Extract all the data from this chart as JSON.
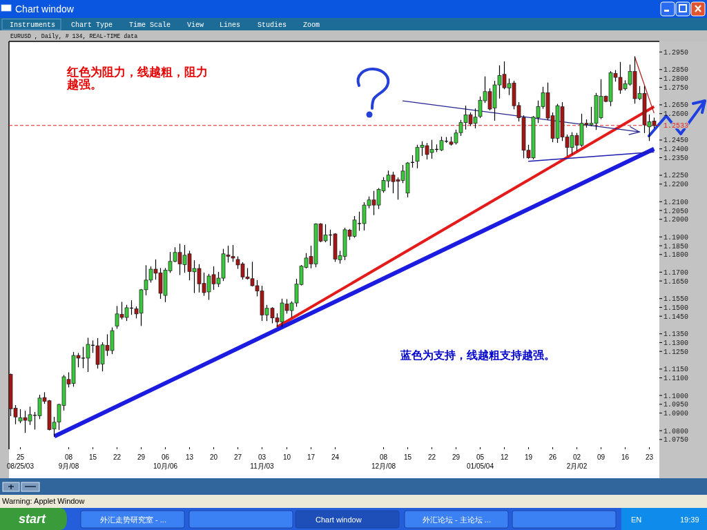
{
  "chart_data": {
    "type": "candlestick",
    "title": "EURUSD , Daily, # 134, REAL-TIME data",
    "categories": [
      null,
      null,
      "25\n08/25/03",
      null,
      null,
      null,
      null,
      null,
      null,
      null,
      null,
      null,
      "08\n9月/08",
      null,
      null,
      null,
      null,
      "15",
      null,
      null,
      null,
      null,
      "22",
      null,
      null,
      null,
      null,
      "29",
      null,
      null,
      null,
      null,
      "06\n10月/06",
      null,
      null,
      null,
      null,
      "13",
      null,
      null,
      null,
      null,
      "20",
      null,
      null,
      null,
      null,
      "27",
      null,
      null,
      null,
      null,
      "03\n11月/03",
      null,
      null,
      null,
      null,
      "10",
      null,
      null,
      null,
      null,
      "17",
      null,
      null,
      null,
      null,
      "24",
      null,
      null,
      null,
      null,
      null,
      null,
      null,
      null,
      null,
      "08\n12月/08",
      null,
      null,
      null,
      null,
      "15",
      null,
      null,
      null,
      null,
      "22",
      null,
      null,
      null,
      null,
      "29",
      null,
      null,
      null,
      null,
      "05\n01/05/04",
      null,
      null,
      null,
      null,
      "12",
      null,
      null,
      null,
      null,
      "19",
      null,
      null,
      null,
      null,
      "26",
      null,
      null,
      null,
      null,
      "02\n2月/02",
      null,
      null,
      null,
      null,
      "09",
      null,
      null,
      null,
      null,
      "16",
      null,
      null,
      null,
      null,
      "23",
      null
    ],
    "ohlc": [
      [
        1.112,
        1.1122,
        1.0885,
        1.0924
      ],
      [
        1.0928,
        1.0943,
        1.0839,
        1.0878
      ],
      [
        1.0855,
        1.092,
        1.0845,
        1.0874
      ],
      [
        1.0874,
        1.0911,
        1.079,
        1.0859
      ],
      [
        1.0855,
        1.0934,
        1.0835,
        1.0891
      ],
      [
        1.0887,
        1.0904,
        1.0809,
        1.0887
      ],
      [
        1.0885,
        1.1002,
        1.0868,
        1.0985
      ],
      [
        1.0988,
        1.1016,
        1.0955,
        1.0967
      ],
      [
        1.097,
        1.0972,
        1.0804,
        1.0806
      ],
      [
        1.081,
        1.0876,
        1.0767,
        1.0848
      ],
      [
        1.0849,
        1.095,
        1.0806,
        1.0949
      ],
      [
        1.0943,
        1.1114,
        1.0917,
        1.1106
      ],
      [
        1.1091,
        1.1129,
        1.1048,
        1.1065
      ],
      [
        1.1068,
        1.1244,
        1.1052,
        1.1227
      ],
      [
        1.1227,
        1.1239,
        1.1162,
        1.1212
      ],
      [
        1.1212,
        1.1274,
        1.1157,
        1.1212
      ],
      [
        1.1212,
        1.1325,
        1.1136,
        1.129
      ],
      [
        1.1285,
        1.131,
        1.1244,
        1.1285
      ],
      [
        1.1282,
        1.1323,
        1.1155,
        1.1176
      ],
      [
        1.1179,
        1.13,
        1.1139,
        1.1287
      ],
      [
        1.1285,
        1.1345,
        1.1227,
        1.1255
      ],
      [
        1.1255,
        1.1384,
        1.1237,
        1.1368
      ],
      [
        1.1394,
        1.1506,
        1.1381,
        1.1463
      ],
      [
        1.146,
        1.1529,
        1.1434,
        1.1443
      ],
      [
        1.1443,
        1.1512,
        1.1425,
        1.1498
      ],
      [
        1.1496,
        1.1538,
        1.146,
        1.1496
      ],
      [
        1.1492,
        1.1503,
        1.144,
        1.1463
      ],
      [
        1.1467,
        1.1602,
        1.1397,
        1.16
      ],
      [
        1.16,
        1.1737,
        1.1571,
        1.1655
      ],
      [
        1.1655,
        1.173,
        1.1643,
        1.1717
      ],
      [
        1.1717,
        1.177,
        1.166,
        1.1694
      ],
      [
        1.1695,
        1.1721,
        1.1551,
        1.158
      ],
      [
        1.1568,
        1.1721,
        1.1532,
        1.1711
      ],
      [
        1.1708,
        1.1812,
        1.1698,
        1.1761
      ],
      [
        1.1761,
        1.1839,
        1.1759,
        1.1812
      ],
      [
        1.1812,
        1.1859,
        1.1686,
        1.1747
      ],
      [
        1.1743,
        1.1852,
        1.1699,
        1.1796
      ],
      [
        1.1804,
        1.1819,
        1.1656,
        1.1704
      ],
      [
        1.1702,
        1.1765,
        1.1584,
        1.1721
      ],
      [
        1.1721,
        1.1743,
        1.1587,
        1.1634
      ],
      [
        1.1636,
        1.1695,
        1.1568,
        1.1584
      ],
      [
        1.1588,
        1.1688,
        1.1545,
        1.1678
      ],
      [
        1.1686,
        1.173,
        1.1602,
        1.1634
      ],
      [
        1.1634,
        1.1699,
        1.1618,
        1.1666
      ],
      [
        1.1666,
        1.183,
        1.1652,
        1.1804
      ],
      [
        1.1798,
        1.1848,
        1.1757,
        1.179
      ],
      [
        1.1789,
        1.1852,
        1.1761,
        1.178
      ],
      [
        1.1772,
        1.1787,
        1.1721,
        1.1741
      ],
      [
        1.1747,
        1.1754,
        1.166,
        1.1673
      ],
      [
        1.1673,
        1.1721,
        1.166,
        1.1663
      ],
      [
        1.1663,
        1.1757,
        1.1621,
        1.1623
      ],
      [
        1.1623,
        1.1653,
        1.1565,
        1.1593
      ],
      [
        1.1593,
        1.1621,
        1.1425,
        1.1457
      ],
      [
        1.1457,
        1.1512,
        1.1425,
        1.1495
      ],
      [
        1.1495,
        1.1499,
        1.1412,
        1.144
      ],
      [
        1.144,
        1.1464,
        1.1392,
        1.1417
      ],
      [
        1.1417,
        1.1547,
        1.1392,
        1.1525
      ],
      [
        1.1519,
        1.1545,
        1.1467,
        1.1482
      ],
      [
        1.1482,
        1.1532,
        1.1444,
        1.1525
      ],
      [
        1.1525,
        1.166,
        1.1506,
        1.1632
      ],
      [
        1.163,
        1.1738,
        1.1627,
        1.1734
      ],
      [
        1.1727,
        1.1806,
        1.1724,
        1.178
      ],
      [
        1.1789,
        1.1848,
        1.1724,
        1.1747
      ],
      [
        1.1747,
        1.1975,
        1.173,
        1.1974
      ],
      [
        1.1974,
        1.1976,
        1.1872,
        1.1876
      ],
      [
        1.1878,
        1.197,
        1.1872,
        1.1911
      ],
      [
        1.1911,
        1.1939,
        1.1852,
        1.1911
      ],
      [
        1.1917,
        1.1919,
        1.1761,
        1.1774
      ],
      [
        1.177,
        1.1819,
        1.1751,
        1.1793
      ],
      [
        1.179,
        1.195,
        1.177,
        1.1941
      ],
      [
        1.1939,
        1.1943,
        1.1885,
        1.1904
      ],
      [
        1.1904,
        1.2016,
        1.1898,
        1.1996
      ],
      [
        1.1976,
        1.2041,
        1.1937,
        1.1976
      ],
      [
        1.1976,
        1.2094,
        1.1939,
        1.2081
      ],
      [
        1.2078,
        1.2127,
        1.2065,
        1.211
      ],
      [
        1.211,
        1.2159,
        1.2026,
        1.2081
      ],
      [
        1.2081,
        1.2175,
        1.2061,
        1.217
      ],
      [
        1.2162,
        1.2237,
        1.2153,
        1.2221
      ],
      [
        1.2218,
        1.2274,
        1.2183,
        1.2251
      ],
      [
        1.2251,
        1.2268,
        1.215,
        1.2214
      ],
      [
        1.2225,
        1.2235,
        1.2114,
        1.2216
      ],
      [
        1.2221,
        1.2306,
        1.2208,
        1.2274
      ],
      [
        1.2149,
        1.2323,
        1.2127,
        1.232
      ],
      [
        1.2323,
        1.2362,
        1.2296,
        1.2323
      ],
      [
        1.2329,
        1.2421,
        1.2292,
        1.2408
      ],
      [
        1.2408,
        1.244,
        1.2362,
        1.2421
      ],
      [
        1.2418,
        1.2431,
        1.2342,
        1.2368
      ],
      [
        1.2379,
        1.2449,
        1.2346,
        1.2397
      ],
      [
        1.2397,
        1.2423,
        1.2384,
        1.2397
      ],
      [
        1.2394,
        1.2467,
        1.239,
        1.2447
      ],
      [
        1.2443,
        1.2465,
        1.2436,
        1.2443
      ],
      [
        1.2439,
        1.2467,
        1.2421,
        1.2426
      ],
      [
        1.2434,
        1.2507,
        1.2427,
        1.249
      ],
      [
        1.2492,
        1.2562,
        1.2476,
        1.2549
      ],
      [
        1.2549,
        1.2643,
        1.2512,
        1.2593
      ],
      [
        1.2594,
        1.2604,
        1.2532,
        1.2542
      ],
      [
        1.2545,
        1.2627,
        1.2519,
        1.258
      ],
      [
        1.2584,
        1.2695,
        1.2577,
        1.2676
      ],
      [
        1.2673,
        1.2809,
        1.2663,
        1.2725
      ],
      [
        1.2725,
        1.2741,
        1.2621,
        1.2626
      ],
      [
        1.2632,
        1.2784,
        1.2562,
        1.2763
      ],
      [
        1.2763,
        1.2872,
        1.2688,
        1.2816
      ],
      [
        1.2823,
        1.2894,
        1.2741,
        1.2747
      ],
      [
        1.2745,
        1.2797,
        1.2708,
        1.2771
      ],
      [
        1.2774,
        1.2784,
        1.2627,
        1.2645
      ],
      [
        1.2646,
        1.2663,
        1.2558,
        1.2577
      ],
      [
        1.2577,
        1.2588,
        1.2349,
        1.2392
      ],
      [
        1.2392,
        1.2421,
        1.2345,
        1.2349
      ],
      [
        1.2349,
        1.2584,
        1.2342,
        1.258
      ],
      [
        1.2577,
        1.2672,
        1.2549,
        1.264
      ],
      [
        1.264,
        1.275,
        1.263,
        1.2719
      ],
      [
        1.2719,
        1.2774,
        1.2565,
        1.2575
      ],
      [
        1.2588,
        1.2604,
        1.244,
        1.246
      ],
      [
        1.246,
        1.2653,
        1.2436,
        1.2645
      ],
      [
        1.2639,
        1.2663,
        1.2447,
        1.2467
      ],
      [
        1.2467,
        1.2479,
        1.2362,
        1.2408
      ],
      [
        1.2408,
        1.2492,
        1.2371,
        1.2476
      ],
      [
        1.2476,
        1.2488,
        1.239,
        1.2421
      ],
      [
        1.2421,
        1.2597,
        1.2414,
        1.2545
      ],
      [
        1.2545,
        1.2565,
        1.2523,
        1.2538
      ],
      [
        1.2536,
        1.2636,
        1.2532,
        1.2545
      ],
      [
        1.2545,
        1.2715,
        1.251,
        1.2702
      ],
      [
        1.2577,
        1.2793,
        1.2571,
        1.2698
      ],
      [
        1.2698,
        1.27,
        1.2667,
        1.2669
      ],
      [
        1.2669,
        1.2839,
        1.2645,
        1.2832
      ],
      [
        1.2828,
        1.2845,
        1.2784,
        1.2806
      ],
      [
        1.2806,
        1.2891,
        1.2715,
        1.2734
      ],
      [
        1.2741,
        1.2787,
        1.2734,
        1.277
      ],
      [
        1.2767,
        1.2876,
        1.2761,
        1.2839
      ],
      [
        1.2839,
        1.2923,
        1.2659,
        1.2685
      ],
      [
        1.2685,
        1.2754,
        1.2679,
        1.2715
      ],
      [
        1.2715,
        1.2754,
        1.2492,
        1.2536
      ],
      [
        1.2525,
        1.2593,
        1.2447,
        1.2554
      ],
      [
        1.2558,
        1.2575,
        1.2519,
        1.2532
      ]
    ],
    "colors": [
      "#a31616",
      "#a31616",
      "#3cc83c",
      "#a31616",
      "#3cc83c",
      "#000000",
      "#3cc83c",
      "#a31616",
      "#a31616",
      "#3cc83c",
      "#3cc83c",
      "#3cc83c",
      "#a31616",
      "#3cc83c",
      "#a31616",
      "#000000",
      "#3cc83c",
      "#000000",
      "#a31616",
      "#3cc83c",
      "#a31616",
      "#3cc83c",
      "#3cc83c",
      "#a31616",
      "#3cc83c",
      "#000000",
      "#a31616",
      "#3cc83c",
      "#3cc83c",
      "#3cc83c",
      "#a31616",
      "#a31616",
      "#3cc83c",
      "#3cc83c",
      "#3cc83c",
      "#a31616",
      "#3cc83c",
      "#a31616",
      "#3cc83c",
      "#a31616",
      "#a31616",
      "#3cc83c",
      "#a31616",
      "#3cc83c",
      "#3cc83c",
      "#a31616",
      "#a31616",
      "#a31616",
      "#a31616",
      "#a31616",
      "#a31616",
      "#a31616",
      "#a31616",
      "#3cc83c",
      "#a31616",
      "#a31616",
      "#3cc83c",
      "#a31616",
      "#3cc83c",
      "#3cc83c",
      "#3cc83c",
      "#3cc83c",
      "#a31616",
      "#3cc83c",
      "#a31616",
      "#3cc83c",
      "#000000",
      "#a31616",
      "#3cc83c",
      "#3cc83c",
      "#a31616",
      "#3cc83c",
      "#000000",
      "#3cc83c",
      "#3cc83c",
      "#a31616",
      "#3cc83c",
      "#3cc83c",
      "#3cc83c",
      "#a31616",
      "#a31616",
      "#3cc83c",
      "#3cc83c",
      "#000000",
      "#3cc83c",
      "#3cc83c",
      "#a31616",
      "#3cc83c",
      "#000000",
      "#3cc83c",
      "#000000",
      "#a31616",
      "#3cc83c",
      "#3cc83c",
      "#3cc83c",
      "#a31616",
      "#3cc83c",
      "#3cc83c",
      "#3cc83c",
      "#a31616",
      "#3cc83c",
      "#3cc83c",
      "#a31616",
      "#3cc83c",
      "#a31616",
      "#a31616",
      "#a31616",
      "#a31616",
      "#3cc83c",
      "#3cc83c",
      "#3cc83c",
      "#a31616",
      "#a31616",
      "#3cc83c",
      "#a31616",
      "#a31616",
      "#3cc83c",
      "#a31616",
      "#3cc83c",
      "#a31616",
      "#3cc83c",
      "#3cc83c",
      "#3cc83c",
      "#a31616",
      "#3cc83c",
      "#a31616",
      "#a31616",
      "#3cc83c",
      "#3cc83c",
      "#a31616",
      "#3cc83c",
      "#a31616",
      "#3cc83c",
      "#a31616"
    ],
    "ylim": [
      1.053,
      1.301
    ],
    "yticks": [
      {
        "value": 1.295,
        "label": "1.2950"
      },
      {
        "value": 1.285,
        "label": "1.2850"
      },
      {
        "value": 1.28,
        "label": "1.2800"
      },
      {
        "value": 1.275,
        "label": "1.2750"
      },
      {
        "value": 1.265,
        "label": "1.2650"
      },
      {
        "value": 1.26,
        "label": "1.2600"
      },
      {
        "value": 1.245,
        "label": "1.2450"
      },
      {
        "value": 1.24,
        "label": "1.2400"
      },
      {
        "value": 1.235,
        "label": "1.2350"
      },
      {
        "value": 1.225,
        "label": "1.2250"
      },
      {
        "value": 1.22,
        "label": "1.2200"
      },
      {
        "value": 1.21,
        "label": "1.2100"
      },
      {
        "value": 1.205,
        "label": "1.2050"
      },
      {
        "value": 1.2,
        "label": "1.2000"
      },
      {
        "value": 1.19,
        "label": "1.1900"
      },
      {
        "value": 1.185,
        "label": "1.1850"
      },
      {
        "value": 1.18,
        "label": "1.1800"
      },
      {
        "value": 1.17,
        "label": "1.1700"
      },
      {
        "value": 1.165,
        "label": "1.1650"
      },
      {
        "value": 1.155,
        "label": "1.1550"
      },
      {
        "value": 1.15,
        "label": "1.1500"
      },
      {
        "value": 1.145,
        "label": "1.1450"
      },
      {
        "value": 1.135,
        "label": "1.1350"
      },
      {
        "value": 1.13,
        "label": "1.1300"
      },
      {
        "value": 1.125,
        "label": "1.1250"
      },
      {
        "value": 1.115,
        "label": "1.1150"
      },
      {
        "value": 1.11,
        "label": "1.1100"
      },
      {
        "value": 1.1,
        "label": "1.1000"
      },
      {
        "value": 1.095,
        "label": "1.0950"
      },
      {
        "value": 1.09,
        "label": "1.0900"
      },
      {
        "value": 1.08,
        "label": "1.0800"
      },
      {
        "value": 1.075,
        "label": "1.0750"
      }
    ],
    "series": [
      {
        "type": "line",
        "color": "#e41b1b",
        "values": [
          null,
          null,
          null,
          null,
          null,
          null,
          null,
          null,
          null,
          null,
          null,
          null,
          null,
          null,
          null,
          null,
          null,
          null,
          null,
          null,
          null,
          null,
          null,
          null,
          null,
          null,
          null,
          null,
          null,
          null,
          null,
          null,
          null,
          null,
          null,
          null,
          null,
          null,
          null,
          null,
          null,
          null,
          null,
          null,
          null,
          null,
          null,
          null,
          null,
          null,
          null,
          null,
          null,
          null,
          null,
          1.1388,
          null,
          null,
          null,
          null,
          null,
          null,
          null,
          null,
          null,
          null,
          null,
          null,
          null,
          null,
          null,
          null,
          null,
          null,
          null,
          null,
          null,
          null,
          null,
          null,
          null,
          null,
          null,
          null,
          null,
          null,
          null,
          null,
          null,
          null,
          null,
          null,
          null,
          null,
          null,
          null,
          null,
          null,
          null,
          null,
          null,
          null,
          null,
          null,
          null,
          null,
          null,
          null,
          null,
          null,
          null,
          null,
          null,
          null,
          null,
          null,
          null,
          null,
          null,
          null,
          null,
          null,
          null,
          null,
          null,
          null,
          null,
          null,
          null,
          null,
          null,
          null,
          null,
          1.264
        ]
      },
      {
        "type": "line",
        "color": "#1c1ce0",
        "values": [
          null,
          null,
          null,
          null,
          null,
          null,
          null,
          null,
          null,
          1.0768,
          null,
          null,
          null,
          null,
          null,
          null,
          null,
          null,
          null,
          null,
          null,
          null,
          null,
          null,
          null,
          null,
          null,
          null,
          null,
          null,
          null,
          null,
          null,
          null,
          null,
          null,
          null,
          null,
          null,
          null,
          null,
          null,
          null,
          null,
          null,
          null,
          null,
          null,
          null,
          null,
          null,
          null,
          null,
          null,
          null,
          null,
          null,
          null,
          null,
          null,
          null,
          null,
          null,
          null,
          null,
          null,
          null,
          null,
          null,
          null,
          null,
          null,
          null,
          null,
          null,
          null,
          null,
          null,
          null,
          null,
          null,
          null,
          null,
          null,
          null,
          null,
          null,
          null,
          null,
          null,
          null,
          null,
          null,
          null,
          null,
          null,
          null,
          null,
          null,
          null,
          null,
          null,
          null,
          null,
          null,
          null,
          null,
          null,
          null,
          null,
          null,
          null,
          null,
          null,
          null,
          null,
          null,
          null,
          null,
          null,
          null,
          null,
          null,
          null,
          null,
          null,
          null,
          null,
          null,
          null,
          null,
          null,
          null,
          1.24
        ]
      },
      {
        "type": "line",
        "color": "#24248f",
        "values": [
          null,
          null,
          null,
          null,
          null,
          null,
          null,
          null,
          null,
          null,
          null,
          null,
          null,
          null,
          null,
          null,
          null,
          null,
          null,
          null,
          null,
          null,
          null,
          null,
          null,
          null,
          null,
          null,
          null,
          null,
          null,
          null,
          null,
          null,
          null,
          null,
          null,
          null,
          null,
          null,
          null,
          null,
          null,
          null,
          null,
          null,
          null,
          null,
          null,
          null,
          null,
          null,
          null,
          null,
          null,
          null,
          null,
          null,
          null,
          null,
          null,
          null,
          null,
          null,
          null,
          null,
          null,
          null,
          null,
          null,
          null,
          null,
          null,
          null,
          null,
          null,
          null,
          null,
          null,
          null,
          null,
          1.2673,
          null,
          null,
          null,
          null,
          null,
          null,
          null,
          null,
          null,
          null,
          null,
          null,
          null,
          null,
          null,
          null,
          null,
          null,
          null,
          null,
          null,
          null,
          null,
          null,
          null,
          null,
          null,
          null,
          null,
          null,
          null,
          null,
          null,
          null,
          null,
          null,
          null,
          null,
          null,
          null,
          null,
          null,
          null,
          null,
          null,
          null,
          null,
          null,
          1.2496,
          null,
          null,
          null
        ]
      },
      {
        "type": "line",
        "color": "#1c1cb0",
        "values": [
          null,
          null,
          null,
          null,
          null,
          null,
          null,
          null,
          null,
          null,
          null,
          null,
          null,
          null,
          null,
          null,
          null,
          null,
          null,
          null,
          null,
          null,
          null,
          null,
          null,
          null,
          null,
          null,
          null,
          null,
          null,
          null,
          null,
          null,
          null,
          null,
          null,
          null,
          null,
          null,
          null,
          null,
          null,
          null,
          null,
          null,
          null,
          null,
          null,
          null,
          null,
          null,
          null,
          null,
          null,
          null,
          null,
          null,
          null,
          null,
          null,
          null,
          null,
          null,
          null,
          null,
          null,
          null,
          null,
          null,
          null,
          null,
          null,
          null,
          null,
          null,
          null,
          null,
          null,
          null,
          null,
          null,
          null,
          null,
          null,
          null,
          null,
          null,
          null,
          null,
          null,
          null,
          null,
          null,
          null,
          null,
          null,
          null,
          null,
          null,
          null,
          null,
          null,
          null,
          null,
          null,
          null,
          1.2329,
          null,
          null,
          null,
          null,
          null,
          null,
          null,
          null,
          null,
          null,
          null,
          null,
          null,
          null,
          null,
          null,
          null,
          null,
          null,
          null,
          null,
          null,
          null,
          null,
          null,
          1.2382
        ]
      },
      {
        "type": "line",
        "color": "#b01515",
        "values": [
          null,
          null,
          null,
          null,
          null,
          null,
          null,
          null,
          null,
          null,
          null,
          null,
          null,
          null,
          null,
          null,
          null,
          null,
          null,
          null,
          null,
          null,
          null,
          null,
          null,
          null,
          null,
          null,
          null,
          null,
          null,
          null,
          null,
          null,
          null,
          null,
          null,
          null,
          null,
          null,
          null,
          null,
          null,
          null,
          null,
          null,
          null,
          null,
          null,
          null,
          null,
          null,
          null,
          null,
          null,
          null,
          null,
          null,
          null,
          null,
          null,
          null,
          null,
          null,
          null,
          null,
          null,
          null,
          null,
          null,
          null,
          null,
          null,
          null,
          null,
          null,
          null,
          null,
          null,
          null,
          null,
          null,
          null,
          null,
          null,
          null,
          null,
          null,
          null,
          null,
          null,
          null,
          null,
          null,
          null,
          null,
          null,
          null,
          null,
          null,
          null,
          null,
          null,
          null,
          null,
          null,
          null,
          null,
          null,
          null,
          null,
          null,
          null,
          null,
          null,
          null,
          null,
          null,
          null,
          null,
          null,
          null,
          null,
          null,
          null,
          null,
          null,
          null,
          null,
          1.2923,
          null,
          null,
          null,
          1.2603
        ]
      }
    ],
    "ref_lines": [
      {
        "axis": "y",
        "value": 1.2533,
        "label": "1.2533",
        "color": "#e02020",
        "line_style": "dashed"
      }
    ],
    "annotations": [
      "红色为阻力，线越粗，阻力越强。",
      "蓝色为支持，线越粗支持越强。",
      "Chart window",
      "Instruments",
      "Chart Type",
      "Time Scale",
      "View",
      "Lines",
      "Studies",
      "Zoom",
      "Warning: Applet Window",
      "start",
      "外汇走势研究室 - ...",
      "Chart window",
      "外汇论坛 - 主论坛 ...",
      "EN",
      "19:39"
    ]
  }
}
